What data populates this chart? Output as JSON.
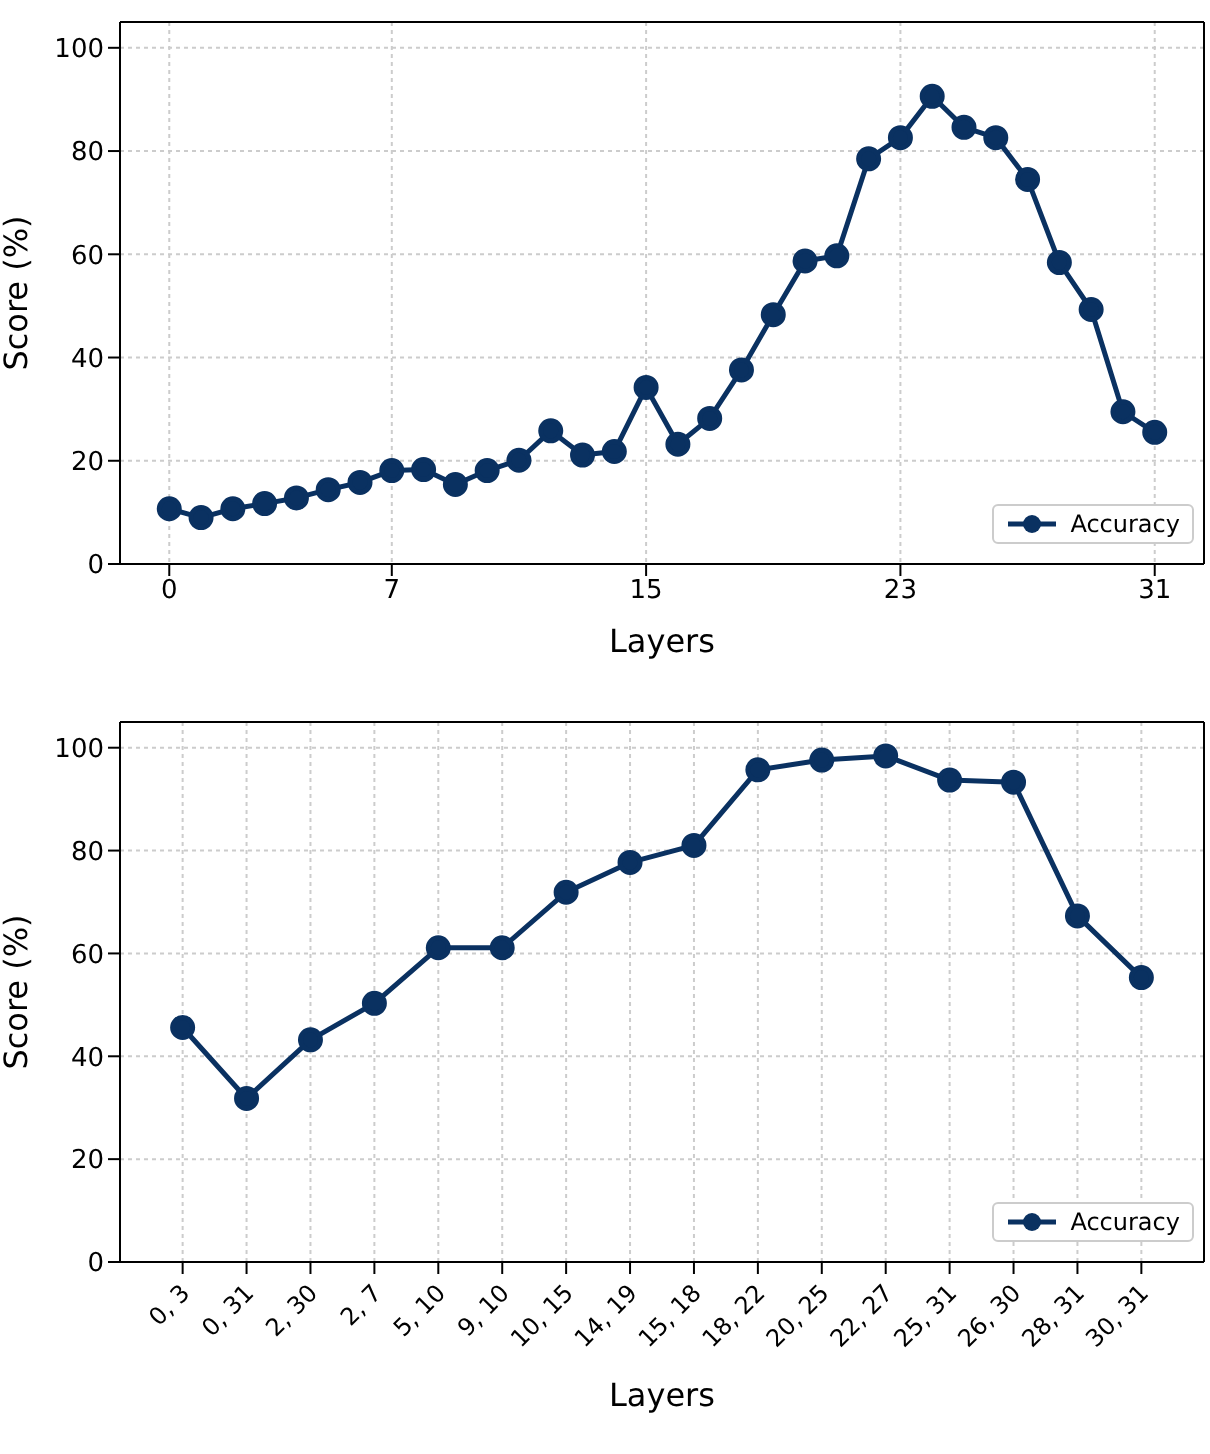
{
  "chart_data": [
    {
      "type": "line",
      "xlabel": "Layers",
      "ylabel": "Score (%)",
      "x": [
        0,
        1,
        2,
        3,
        4,
        5,
        6,
        7,
        8,
        9,
        10,
        11,
        12,
        13,
        14,
        15,
        16,
        17,
        18,
        19,
        20,
        21,
        22,
        23,
        24,
        25,
        26,
        27,
        28,
        29,
        30,
        31
      ],
      "xlim": [
        -1.55,
        32.55
      ],
      "xticks": [
        0,
        7,
        15,
        23,
        31
      ],
      "ylim": [
        0,
        105
      ],
      "yticks": [
        0,
        20,
        40,
        60,
        80,
        100
      ],
      "grid": true,
      "legend": "bottom right",
      "marker": "circle",
      "line_style": "solid",
      "series": [
        {
          "name": "Accuracy",
          "color": "#0a3161",
          "values": [
            10.7,
            9,
            10.7,
            11.7,
            12.8,
            14.4,
            15.8,
            18.1,
            18.3,
            15.4,
            18.1,
            20.1,
            25.8,
            21.1,
            21.8,
            34.2,
            23.2,
            28.2,
            37.6,
            48.3,
            58.7,
            59.7,
            78.5,
            82.6,
            90.6,
            84.6,
            82.6,
            74.5,
            58.4,
            49.3,
            29.5,
            25.5
          ]
        }
      ]
    },
    {
      "type": "line",
      "xlabel": "Layers",
      "ylabel": "Score (%)",
      "categories": [
        "0, 3",
        "0, 31",
        "2, 30",
        "2, 7",
        "5, 10",
        "9, 10",
        "10, 15",
        "14, 19",
        "15, 18",
        "18, 22",
        "20, 25",
        "22, 27",
        "25, 31",
        "26, 30",
        "28, 31",
        "30, 31"
      ],
      "ylim": [
        0,
        105
      ],
      "yticks": [
        0,
        20,
        40,
        60,
        80,
        100
      ],
      "grid": true,
      "legend": "bottom right",
      "marker": "circle",
      "line_style": "solid",
      "series": [
        {
          "name": "Accuracy",
          "color": "#0a3161",
          "values": [
            45.6,
            31.8,
            43.2,
            50.3,
            61.1,
            61.1,
            71.9,
            77.7,
            81.0,
            95.7,
            97.6,
            98.4,
            93.7,
            93.3,
            67.3,
            55.3
          ]
        }
      ]
    }
  ]
}
